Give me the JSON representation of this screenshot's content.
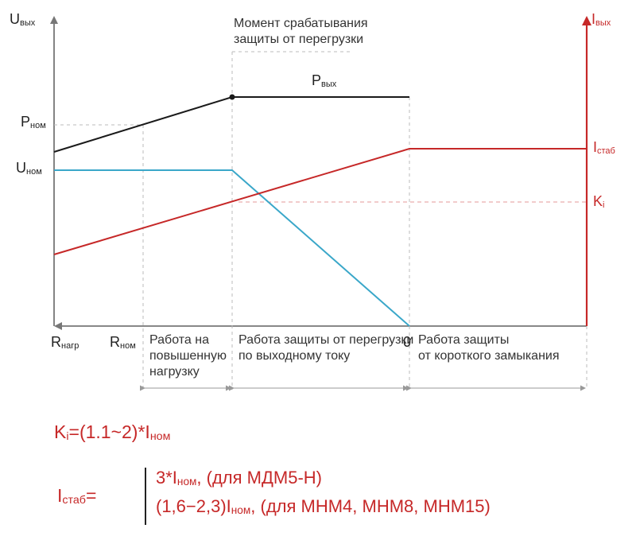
{
  "axes": {
    "u_out": {
      "main": "U",
      "sub": "вых"
    },
    "i_out": {
      "main": "I",
      "sub": "вых"
    },
    "r_load": {
      "main": "R",
      "sub": "нагр"
    },
    "r_nom": {
      "main": "R",
      "sub": "ном"
    },
    "zero": "0"
  },
  "levels": {
    "p_nom": {
      "main": "P",
      "sub": "ном"
    },
    "u_nom": {
      "main": "U",
      "sub": "ном"
    },
    "i_stab": {
      "main": "I",
      "sub": "стаб"
    },
    "k_i": {
      "main": "K",
      "sub": "i"
    },
    "p_out": {
      "main": "P",
      "sub": "вых"
    }
  },
  "annotation": {
    "line1": "Момент срабатывания",
    "line2": "защиты от перегрузки"
  },
  "zones": [
    {
      "lines": [
        "Работа на",
        "повышенную",
        "нагрузку"
      ]
    },
    {
      "lines": [
        "Работа защиты от перегрузки",
        "по выходному току"
      ]
    },
    {
      "lines": [
        "Работа защиты",
        "от короткого замыкания"
      ]
    }
  ],
  "formulas": {
    "ki": {
      "k": "K",
      "k_sub": "i",
      "eq": "=(1.1~2)*I",
      "i_sub": "ном"
    },
    "istab": {
      "label": "I",
      "label_sub": "стаб",
      "eq": "=",
      "line1": {
        "pre": "3*I",
        "sub": "ном",
        "post": ", (для МДМ5-Н)"
      },
      "line2": {
        "pre": "(1,6−2,3)I",
        "sub": "ном",
        "post": ", (для МНМ4, МНМ8, МНМ15)"
      }
    }
  },
  "colors": {
    "power_curve": "#1a1a1a",
    "voltage_curve": "#3aa7c9",
    "current_curve": "#c62828",
    "axis": "#777777",
    "guide": "#bbbbbb"
  }
}
